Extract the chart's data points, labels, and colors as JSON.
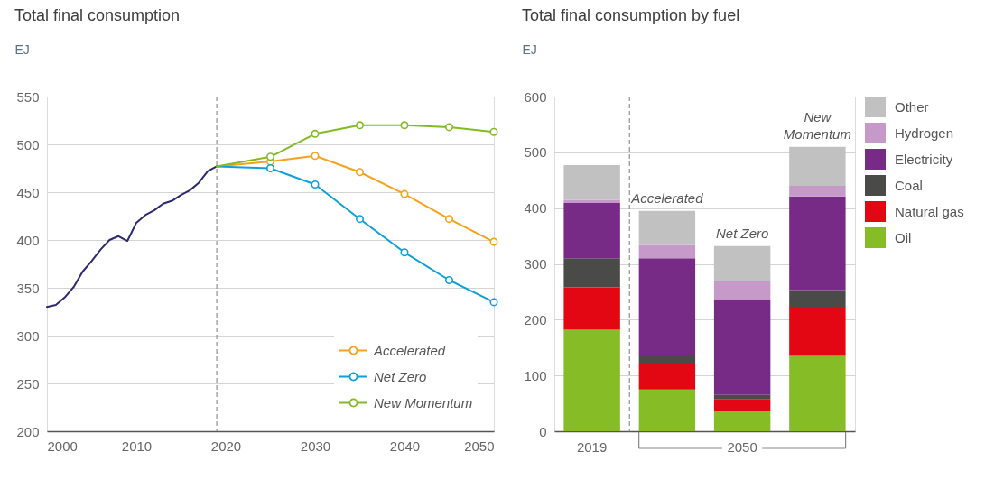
{
  "chart_data": [
    {
      "type": "line",
      "title": "Total final consumption",
      "ylabel": "EJ",
      "xlim": [
        2000,
        2050
      ],
      "xticks": [
        2000,
        2010,
        2020,
        2030,
        2040,
        2050
      ],
      "ylim": [
        200,
        550
      ],
      "yticks": [
        200,
        250,
        300,
        350,
        400,
        450,
        500,
        550
      ],
      "grid": "y",
      "legend": "bottom right",
      "marker": "circle",
      "line_style": "solid",
      "ref_lines": [
        {
          "axis": "x",
          "value": 2019,
          "color": "#999999",
          "line_style": "dashed"
        }
      ],
      "series": [
        {
          "color": "#2b2a6d",
          "marker": "none",
          "x": [
            2000,
            2001,
            2002,
            2003,
            2004,
            2005,
            2006,
            2007,
            2008,
            2009,
            2010,
            2011,
            2012,
            2013,
            2014,
            2015,
            2016,
            2017,
            2018,
            2019
          ],
          "values": [
            330,
            332,
            340,
            351,
            367,
            378,
            390,
            400,
            404,
            399,
            418,
            426,
            431,
            438,
            441,
            447,
            452,
            460,
            472,
            477
          ]
        },
        {
          "name": "Accelerated",
          "color": "#f5a21c",
          "x": [
            2019,
            2025,
            2030,
            2035,
            2040,
            2045,
            2050
          ],
          "values": [
            477,
            482,
            488,
            471,
            448,
            422,
            398
          ]
        },
        {
          "name": "Net Zero",
          "color": "#0ea1d9",
          "x": [
            2019,
            2025,
            2030,
            2035,
            2040,
            2045,
            2050
          ],
          "values": [
            477,
            475,
            458,
            422,
            387,
            358,
            335
          ]
        },
        {
          "name": "New Momentum",
          "color": "#82bb26",
          "x": [
            2019,
            2025,
            2030,
            2035,
            2040,
            2045,
            2050
          ],
          "values": [
            477,
            487,
            511,
            520,
            520,
            518,
            513
          ]
        }
      ]
    },
    {
      "type": "bar",
      "stacked": true,
      "title": "Total final consumption by fuel",
      "ylabel": "EJ",
      "categories": [
        "2019",
        null,
        "2050",
        null
      ],
      "ylim": [
        0,
        600
      ],
      "yticks": [
        0,
        100,
        200,
        300,
        400,
        500,
        600
      ],
      "grid": "y",
      "legend": "right",
      "annotations": [
        {
          "text": "Accelerated",
          "y": 395
        },
        {
          "text": "Net Zero",
          "y": 332
        },
        {
          "text": "New\nMomentum",
          "y": 510
        }
      ],
      "series": [
        {
          "name": "Oil",
          "color": "#86bc25",
          "values": [
            182,
            75,
            37,
            135
          ]
        },
        {
          "name": "Natural gas",
          "color": "#e30613",
          "values": [
            76,
            46,
            21,
            88
          ]
        },
        {
          "name": "Coal",
          "color": "#4a4a49",
          "values": [
            52,
            16,
            7,
            30
          ]
        },
        {
          "name": "Electricity",
          "color": "#772b86",
          "values": [
            99,
            173,
            172,
            168
          ]
        },
        {
          "name": "Hydrogen",
          "color": "#c59ac8",
          "values": [
            6,
            24,
            32,
            19
          ]
        },
        {
          "name": "Other",
          "color": "#c1c1c1",
          "values": [
            62,
            61,
            63,
            70
          ]
        }
      ]
    }
  ]
}
